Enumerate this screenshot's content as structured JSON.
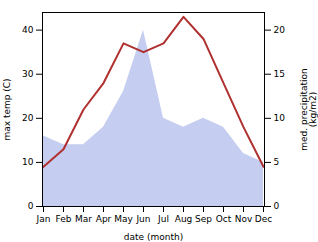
{
  "chart_data": {
    "type": "line",
    "xlabel": "date (month)",
    "ylabel": "max temp (C)",
    "y2label": "med. precipitation\n(kg/m2)",
    "categories": [
      "Jan",
      "Feb",
      "Mar",
      "Apr",
      "May",
      "Jun",
      "Jul",
      "Aug",
      "Sep",
      "Oct",
      "Nov",
      "Dec"
    ],
    "series": [
      {
        "type": "area",
        "axis": "y2",
        "color": "#c5cdf0",
        "values": [
          8,
          7,
          7,
          9,
          13,
          20,
          10,
          9,
          10,
          9,
          6,
          5
        ]
      },
      {
        "type": "line",
        "color": "#b03030",
        "values": [
          9,
          13,
          22,
          28,
          37,
          35,
          37,
          43,
          38,
          28,
          18,
          9
        ]
      }
    ],
    "ylim": [
      0,
      44
    ],
    "yticks": [
      0,
      10,
      20,
      30,
      40
    ],
    "y2lim": [
      0,
      22
    ],
    "y2ticks": [
      0,
      5,
      10,
      15,
      20
    ],
    "grid": false
  }
}
